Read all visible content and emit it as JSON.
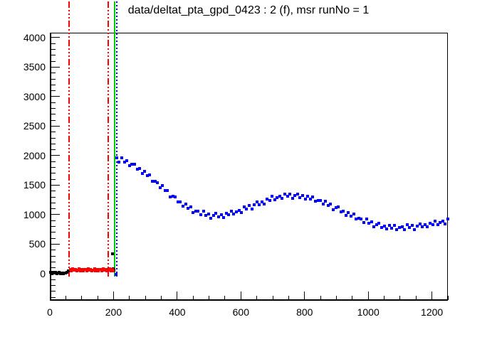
{
  "window": {
    "background": "#ffffff"
  },
  "chart_data": {
    "type": "scatter",
    "title": "data/deltat_pta_gpd_0423 : 2 (f), msr runNo = 1",
    "xlabel": "",
    "ylabel": "",
    "xlim": [
      0,
      1250
    ],
    "ylim": [
      -458,
      4084
    ],
    "grid": false,
    "legend": null,
    "x_ticks": {
      "major_step": 200,
      "minor_step": 50,
      "labels": [
        0,
        200,
        400,
        600,
        800,
        1000,
        1200
      ]
    },
    "y_ticks": {
      "major_step": 500,
      "minor_step": 100,
      "labels": [
        0,
        500,
        1000,
        1500,
        2000,
        2500,
        3000,
        3500,
        4000
      ]
    },
    "vlines": [
      {
        "name": "fit-range-line-1",
        "x": 61,
        "color": "#ff0000",
        "style": "dashdot"
      },
      {
        "name": "fit-range-line-2",
        "x": 183,
        "color": "#ff0000",
        "style": "dashdot"
      },
      {
        "name": "t0-line",
        "x": 204,
        "color": "#00cc00",
        "style": "solid"
      },
      {
        "name": "data-start-line",
        "x": 211,
        "color": "#0000ff",
        "style": "dotted"
      }
    ],
    "series": [
      {
        "name": "pre-t0-counts",
        "color": "#000000",
        "marker": "square",
        "points": [
          [
            2,
            18
          ],
          [
            6,
            4
          ],
          [
            10,
            24
          ],
          [
            14,
            8
          ],
          [
            18,
            21
          ],
          [
            22,
            1
          ],
          [
            26,
            15
          ],
          [
            30,
            22
          ],
          [
            34,
            2
          ],
          [
            38,
            10
          ],
          [
            42,
            1
          ],
          [
            46,
            16
          ],
          [
            50,
            8
          ],
          [
            54,
            22
          ],
          [
            58,
            44
          ],
          [
            62,
            52
          ],
          [
            186,
            70
          ],
          [
            190,
            78
          ],
          [
            194,
            64
          ],
          [
            197,
            335
          ],
          [
            198,
            85
          ],
          [
            202,
            60
          ]
        ]
      },
      {
        "name": "background-window-counts",
        "color": "#ff0000",
        "marker": "square",
        "points": [
          [
            64,
            72
          ],
          [
            68,
            48
          ],
          [
            72,
            84
          ],
          [
            76,
            56
          ],
          [
            80,
            77
          ],
          [
            84,
            42
          ],
          [
            88,
            66
          ],
          [
            92,
            80
          ],
          [
            96,
            52
          ],
          [
            100,
            70
          ],
          [
            104,
            46
          ],
          [
            108,
            74
          ],
          [
            112,
            72
          ],
          [
            116,
            48
          ],
          [
            120,
            84
          ],
          [
            124,
            56
          ],
          [
            128,
            77
          ],
          [
            132,
            42
          ],
          [
            136,
            66
          ],
          [
            140,
            80
          ],
          [
            144,
            52
          ],
          [
            148,
            70
          ],
          [
            152,
            46
          ],
          [
            156,
            74
          ],
          [
            160,
            72
          ],
          [
            164,
            48
          ],
          [
            168,
            84
          ],
          [
            172,
            56
          ],
          [
            176,
            77
          ],
          [
            180,
            42
          ],
          [
            184,
            66
          ],
          [
            188,
            80
          ],
          [
            192,
            52
          ],
          [
            196,
            70
          ],
          [
            200,
            46
          ]
        ]
      },
      {
        "name": "decay-histogram",
        "color": "#0000ff",
        "marker": "square",
        "points": [
          [
            207,
            -15
          ],
          [
            210,
            1958
          ],
          [
            218,
            1895
          ],
          [
            226,
            1959
          ],
          [
            234,
            1894
          ],
          [
            242,
            1917
          ],
          [
            250,
            1832
          ],
          [
            258,
            1855
          ],
          [
            266,
            1859
          ],
          [
            274,
            1771
          ],
          [
            282,
            1777
          ],
          [
            290,
            1699
          ],
          [
            298,
            1734
          ],
          [
            306,
            1662
          ],
          [
            314,
            1677
          ],
          [
            322,
            1572
          ],
          [
            330,
            1567
          ],
          [
            338,
            1544
          ],
          [
            346,
            1457
          ],
          [
            354,
            1496
          ],
          [
            362,
            1407
          ],
          [
            370,
            1405
          ],
          [
            378,
            1296
          ],
          [
            386,
            1310
          ],
          [
            394,
            1305
          ],
          [
            402,
            1211
          ],
          [
            410,
            1217
          ],
          [
            418,
            1140
          ],
          [
            426,
            1175
          ],
          [
            434,
            1110
          ],
          [
            442,
            1135
          ],
          [
            450,
            1039
          ],
          [
            458,
            1057
          ],
          [
            466,
            1058
          ],
          [
            474,
            994
          ],
          [
            482,
            1057
          ],
          [
            490,
            991
          ],
          [
            498,
            1012
          ],
          [
            506,
            938
          ],
          [
            514,
            990
          ],
          [
            522,
            1024
          ],
          [
            530,
            965
          ],
          [
            538,
            1000
          ],
          [
            546,
            951
          ],
          [
            554,
            1021
          ],
          [
            562,
            997
          ],
          [
            570,
            1062
          ],
          [
            578,
            1006
          ],
          [
            586,
            1051
          ],
          [
            594,
            1078
          ],
          [
            602,
            1041
          ],
          [
            610,
            1135
          ],
          [
            618,
            1100
          ],
          [
            626,
            1153
          ],
          [
            634,
            1098
          ],
          [
            642,
            1167
          ],
          [
            650,
            1216
          ],
          [
            658,
            1171
          ],
          [
            666,
            1221
          ],
          [
            674,
            1186
          ],
          [
            682,
            1264
          ],
          [
            690,
            1243
          ],
          [
            698,
            1310
          ],
          [
            706,
            1252
          ],
          [
            714,
            1292
          ],
          [
            722,
            1314
          ],
          [
            730,
            1271
          ],
          [
            738,
            1355
          ],
          [
            746,
            1311
          ],
          [
            754,
            1349
          ],
          [
            762,
            1274
          ],
          [
            770,
            1322
          ],
          [
            778,
            1351
          ],
          [
            786,
            1289
          ],
          [
            794,
            1320
          ],
          [
            802,
            1265
          ],
          [
            810,
            1315
          ],
          [
            818,
            1266
          ],
          [
            826,
            1305
          ],
          [
            834,
            1225
          ],
          [
            842,
            1244
          ],
          [
            850,
            1246
          ],
          [
            858,
            1177
          ],
          [
            866,
            1234
          ],
          [
            874,
            1162
          ],
          [
            882,
            1178
          ],
          [
            890,
            1087
          ],
          [
            898,
            1119
          ],
          [
            906,
            1130
          ],
          [
            914,
            1050
          ],
          [
            922,
            1063
          ],
          [
            930,
            992
          ],
          [
            938,
            1034
          ],
          [
            946,
            976
          ],
          [
            954,
            1009
          ],
          [
            962,
            923
          ],
          [
            970,
            937
          ],
          [
            978,
            933
          ],
          [
            986,
            865
          ],
          [
            994,
            923
          ],
          [
            1002,
            855
          ],
          [
            1010,
            879
          ],
          [
            1018,
            796
          ],
          [
            1026,
            836
          ],
          [
            1034,
            857
          ],
          [
            1042,
            786
          ],
          [
            1050,
            809
          ],
          [
            1058,
            755
          ],
          [
            1066,
            815
          ],
          [
            1074,
            774
          ],
          [
            1082,
            823
          ],
          [
            1090,
            751
          ],
          [
            1098,
            780
          ],
          [
            1106,
            795
          ],
          [
            1114,
            748
          ],
          [
            1122,
            827
          ],
          [
            1130,
            778
          ],
          [
            1138,
            816
          ],
          [
            1146,
            747
          ],
          [
            1154,
            804
          ],
          [
            1162,
            843
          ],
          [
            1170,
            790
          ],
          [
            1178,
            832
          ],
          [
            1186,
            789
          ],
          [
            1194,
            859
          ],
          [
            1202,
            830
          ],
          [
            1210,
            889
          ],
          [
            1218,
            829
          ],
          [
            1226,
            868
          ],
          [
            1234,
            890
          ],
          [
            1242,
            847
          ],
          [
            1250,
            931
          ]
        ]
      }
    ]
  }
}
